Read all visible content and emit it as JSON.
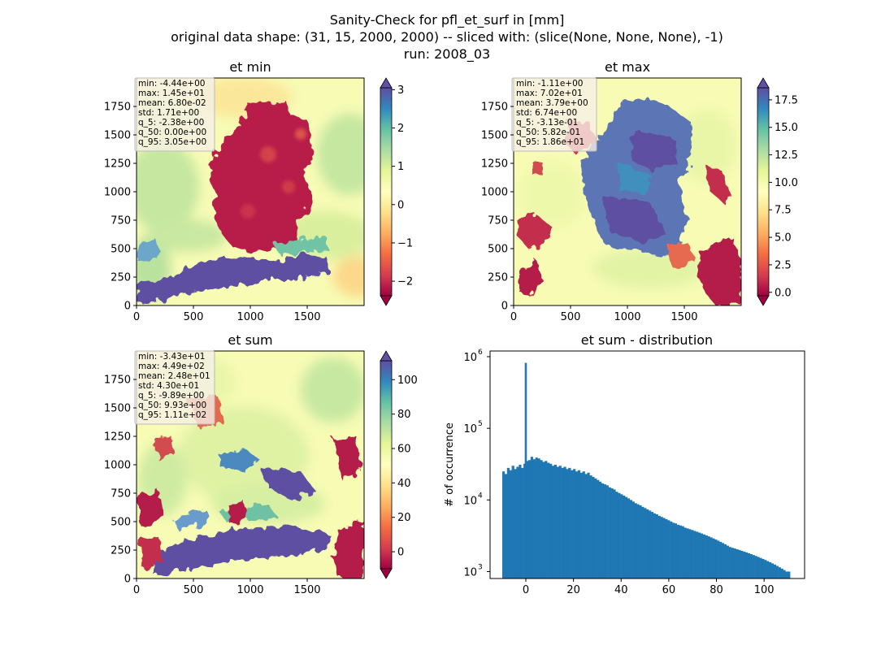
{
  "suptitle": {
    "line1": "Sanity-Check for pfl_et_surf in [mm]",
    "line2": "original data shape: (31, 15, 2000, 2000) -- sliced with: (slice(None, None, None), -1)",
    "line3": "run: 2008_03"
  },
  "colors": {
    "cmap": [
      "#9e0142",
      "#d53e4f",
      "#f46d43",
      "#fdae61",
      "#fee08b",
      "#ffffbf",
      "#e6f598",
      "#abdda4",
      "#66c2a5",
      "#3288bd",
      "#5e4fa2"
    ],
    "hist_bar": "#1f77b4"
  },
  "chart_data": [
    {
      "type": "heatmap",
      "title": "et min",
      "xlim": [
        0,
        2000
      ],
      "ylim": [
        0,
        2000
      ],
      "x_ticks": [
        "0",
        "500",
        "1000",
        "1500"
      ],
      "y_ticks": [
        "0",
        "250",
        "500",
        "750",
        "1000",
        "1250",
        "1500",
        "1750"
      ],
      "colorbar": {
        "vmin": -2.38,
        "vmax": 3.05,
        "ticks": [
          "3",
          "2",
          "1",
          "0",
          "−1",
          "−2"
        ],
        "tick_values": [
          3,
          2,
          1,
          0,
          -1,
          -2
        ]
      },
      "stats": [
        "min: -4.44e+00",
        "max: 1.45e+01",
        "mean: 6.80e-02",
        "std: 1.71e+00",
        "q_5: -2.38e+00",
        "q_50: 0.00e+00",
        "q_95: 3.05e+00"
      ]
    },
    {
      "type": "heatmap",
      "title": "et max",
      "xlim": [
        0,
        2000
      ],
      "ylim": [
        0,
        2000
      ],
      "x_ticks": [
        "0",
        "500",
        "1000",
        "1500"
      ],
      "y_ticks": [
        "0",
        "250",
        "500",
        "750",
        "1000",
        "1250",
        "1500",
        "1750"
      ],
      "colorbar": {
        "vmin": -0.313,
        "vmax": 18.6,
        "ticks": [
          "17.5",
          "15.0",
          "12.5",
          "10.0",
          "7.5",
          "5.0",
          "2.5",
          "0.0"
        ],
        "tick_values": [
          17.5,
          15,
          12.5,
          10,
          7.5,
          5,
          2.5,
          0
        ]
      },
      "stats": [
        "min: -1.11e+00",
        "max: 7.02e+01",
        "mean: 3.79e+00",
        "std: 6.74e+00",
        "q_5: -3.13e-01",
        "q_50: 5.82e-01",
        "q_95: 1.86e+01"
      ]
    },
    {
      "type": "heatmap",
      "title": "et sum",
      "xlim": [
        0,
        2000
      ],
      "ylim": [
        0,
        2000
      ],
      "x_ticks": [
        "0",
        "500",
        "1000",
        "1500"
      ],
      "y_ticks": [
        "0",
        "250",
        "500",
        "750",
        "1000",
        "1250",
        "1500",
        "1750"
      ],
      "colorbar": {
        "vmin": -9.89,
        "vmax": 111,
        "ticks": [
          "100",
          "80",
          "60",
          "40",
          "20",
          "0"
        ],
        "tick_values": [
          100,
          80,
          60,
          40,
          20,
          0
        ]
      },
      "stats": [
        "min: -3.43e+01",
        "max: 4.49e+02",
        "mean: 2.48e+01",
        "std: 4.30e+01",
        "q_5: -9.89e+00",
        "q_50: 9.93e+00",
        "q_95: 1.11e+02"
      ]
    },
    {
      "type": "bar",
      "title": "et sum - distribution",
      "ylabel": "# of occurrence",
      "yscale": "log",
      "xlim": [
        -15,
        117
      ],
      "ylim": [
        800,
        1200000
      ],
      "x_ticks": [
        "0",
        "20",
        "40",
        "60",
        "80",
        "100"
      ],
      "x_tick_values": [
        0,
        20,
        40,
        60,
        80,
        100
      ],
      "y_ticks": [
        "10",
        "10",
        "10",
        "10"
      ],
      "y_tick_exponents": [
        "3",
        "4",
        "5",
        "6"
      ],
      "y_tick_values": [
        1000,
        10000,
        100000,
        1000000
      ],
      "bin_range": [
        -9.89,
        110.9
      ],
      "spike": {
        "x": 0,
        "count": 820000
      },
      "counts": [
        25000,
        23000,
        28000,
        26000,
        30000,
        27000,
        29000,
        31000,
        28000,
        32000,
        35000,
        36000,
        40000,
        37000,
        39000,
        38000,
        36000,
        34000,
        35000,
        33000,
        32000,
        30000,
        31000,
        29000,
        30000,
        28000,
        29000,
        27000,
        28000,
        26000,
        27000,
        25000,
        26000,
        24000,
        25000,
        23000,
        24000,
        22000,
        21000,
        20000,
        19000,
        18000,
        17000,
        16500,
        16000,
        15000,
        14500,
        14000,
        13000,
        12500,
        12000,
        11500,
        11000,
        10500,
        10000,
        9500,
        9000,
        8700,
        8400,
        8000,
        7700,
        7400,
        7100,
        6800,
        6500,
        6300,
        6000,
        5800,
        5600,
        5400,
        5200,
        5000,
        4800,
        4700,
        4500,
        4400,
        4300,
        4100,
        4000,
        3900,
        3800,
        3700,
        3600,
        3500,
        3400,
        3300,
        3200,
        3100,
        3000,
        2900,
        2800,
        2700,
        2600,
        2500,
        2400,
        2300,
        2200,
        2150,
        2100,
        2050,
        2000,
        1950,
        1900,
        1850,
        1800,
        1750,
        1700,
        1650,
        1600,
        1550,
        1500,
        1450,
        1400,
        1350,
        1300,
        1250,
        1200,
        1150,
        1100,
        1050,
        1000,
        1000
      ]
    }
  ]
}
